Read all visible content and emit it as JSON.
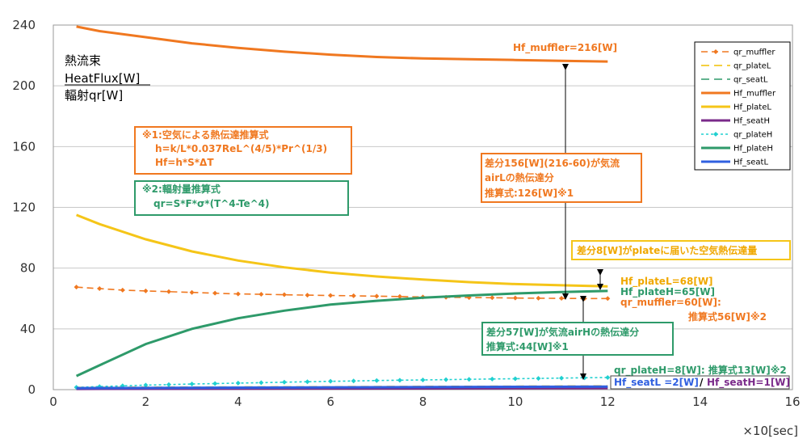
{
  "chart_data": {
    "type": "line",
    "xlim": [
      0,
      16
    ],
    "ylim": [
      0,
      240
    ],
    "x_ticks": [
      0,
      2,
      4,
      6,
      8,
      10,
      12,
      14,
      16
    ],
    "y_ticks": [
      0,
      40,
      80,
      120,
      160,
      200,
      240
    ],
    "grid": "horizontal",
    "legend_position": "right",
    "xlabel": "×10[sec]",
    "ylabel_lines": [
      "熱流束",
      "HeatFlux[W]",
      "輻射qr[W]"
    ],
    "series": [
      {
        "name": "qr_muffler",
        "color": "#f07820",
        "style": "dash-diamond",
        "x": [
          0.5,
          1,
          1.5,
          2,
          2.5,
          3,
          3.5,
          4,
          4.5,
          5,
          5.5,
          6,
          6.5,
          7,
          7.5,
          8,
          8.5,
          9,
          9.5,
          10,
          10.5,
          11,
          11.5,
          12
        ],
        "y": [
          67.5,
          66.5,
          65.5,
          65,
          64.5,
          64,
          63.5,
          63,
          62.8,
          62.5,
          62.2,
          62,
          61.8,
          61.5,
          61.3,
          61,
          60.8,
          60.6,
          60.5,
          60.3,
          60.2,
          60.1,
          60,
          60
        ]
      },
      {
        "name": "qr_plateL",
        "color": "#f0c000",
        "style": "dash",
        "x": [
          0.5,
          12
        ],
        "y": [
          1.5,
          2.5
        ]
      },
      {
        "name": "qr_seatL",
        "color": "#2e9a6a",
        "style": "dash",
        "x": [
          0.5,
          12
        ],
        "y": [
          0.8,
          1.5
        ]
      },
      {
        "name": "Hf_muffler",
        "color": "#f07820",
        "style": "solid",
        "x": [
          0.5,
          1,
          2,
          3,
          4,
          5,
          6,
          7,
          8,
          9,
          10,
          11,
          12
        ],
        "y": [
          239,
          236,
          232,
          228,
          225,
          222.5,
          220.5,
          219,
          218,
          217.5,
          217,
          216.5,
          216
        ]
      },
      {
        "name": "Hf_plateL",
        "color": "#f5c518",
        "style": "solid",
        "x": [
          0.5,
          1,
          2,
          3,
          4,
          5,
          6,
          7,
          8,
          9,
          10,
          11,
          12
        ],
        "y": [
          115,
          109,
          99,
          91,
          85,
          80.5,
          77,
          74.5,
          72.5,
          70.8,
          69.5,
          68.7,
          68
        ]
      },
      {
        "name": "Hf_seatH",
        "color": "#7a2a8a",
        "style": "solid",
        "x": [
          0.5,
          12
        ],
        "y": [
          0.5,
          1
        ]
      },
      {
        "name": "qr_plateH",
        "color": "#20d0d0",
        "style": "dash-dot-marker",
        "x": [
          0.5,
          1,
          1.5,
          2,
          2.5,
          3,
          3.5,
          4,
          4.5,
          5,
          5.5,
          6,
          6.5,
          7,
          7.5,
          8,
          8.5,
          9,
          9.5,
          10,
          10.5,
          11,
          11.5,
          12
        ],
        "y": [
          1.5,
          2,
          2.5,
          3,
          3.3,
          3.7,
          4,
          4.3,
          4.6,
          4.9,
          5.2,
          5.5,
          5.7,
          6,
          6.2,
          6.4,
          6.6,
          6.8,
          7,
          7.2,
          7.4,
          7.6,
          7.8,
          8
        ]
      },
      {
        "name": "Hf_plateH",
        "color": "#2e9a6a",
        "style": "solid",
        "x": [
          0.5,
          1,
          2,
          3,
          4,
          5,
          6,
          7,
          8,
          9,
          10,
          11,
          12
        ],
        "y": [
          9,
          16,
          30,
          40,
          47,
          52,
          56,
          58.5,
          60.5,
          62,
          63.3,
          64.3,
          65
        ]
      },
      {
        "name": "Hf_seatL",
        "color": "#3060e0",
        "style": "solid",
        "x": [
          0.5,
          12
        ],
        "y": [
          1,
          2
        ]
      }
    ],
    "annotations": {
      "hf_muffler_label": "Hf_muffler=216[W]",
      "box1_title": "※1:空気による熱伝達推算式",
      "box1_line1": "h=k/L*0.037ReL^(4/5)*Pr^(1/3)",
      "box1_line2": "Hf=h*S*ΔT",
      "box2_title": "※2:輻射量推算式",
      "box2_line1": "qr=S*F*σ*(T^4-Te^4)",
      "diff156_line1": "差分156[W](216-60)が気流",
      "diff156_line2": "airLの熱伝達分",
      "diff156_line3": "推算式:126[W]※1",
      "diff8": "差分8[W]がplateに届いた空気熱伝達量",
      "plateL_label": "Hf_plateL=68[W]",
      "plateH_label": "Hf_plateH=65[W]",
      "qr_muffler_label": "qr_muffler=60[W]:",
      "qr_muffler_sub": "推算式56[W]※2",
      "diff57_line1": "差分57[W]が気流airHの熱伝達分",
      "diff57_line2": "推算式:44[W]※1",
      "qr_plateH_label": "qr_plateH=8[W]: 推算式13[W]※2",
      "seatL_label": "Hf_seatL =2[W]",
      "slash": "/",
      "seatH_label": "Hf_seatH=1[W]"
    }
  }
}
